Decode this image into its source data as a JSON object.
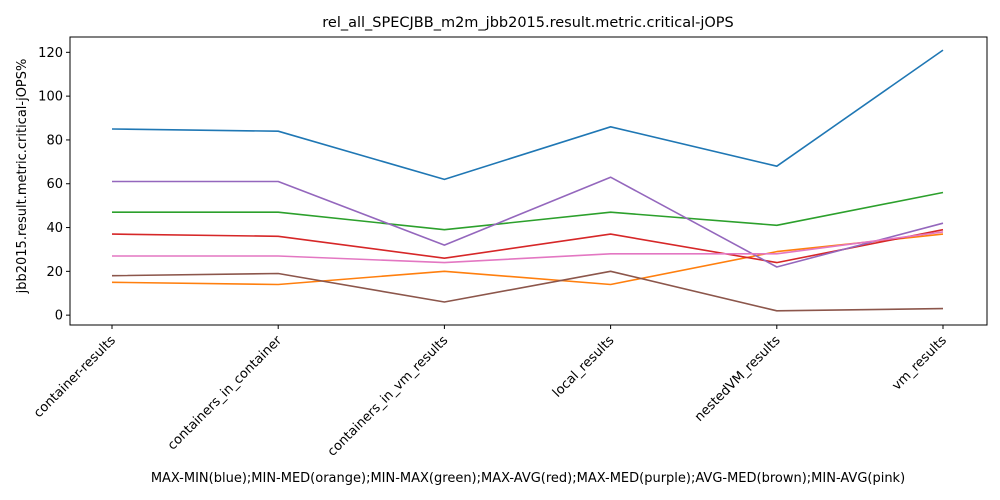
{
  "chart_data": {
    "type": "line",
    "title": "rel_all_SPECJBB_m2m_jbb2015.result.metric.critical-jOPS",
    "xlabel": "MAX-MIN(blue);MIN-MED(orange);MIN-MAX(green);MAX-AVG(red);MAX-MED(purple);AVG-MED(brown);MIN-AVG(pink)",
    "ylabel": "jbb2015.result.metric.critical-jOPS%",
    "categories": [
      "container-results",
      "containers_in_container",
      "containers_in_vm_results",
      "local_results",
      "nestedVM_results",
      "vm_results"
    ],
    "ylim": [
      -4.5,
      127
    ],
    "yticks": [
      0,
      20,
      40,
      60,
      80,
      100,
      120
    ],
    "grid": false,
    "series": [
      {
        "color": "#1f77b4",
        "values": [
          85,
          84,
          62,
          86,
          68,
          121
        ]
      },
      {
        "color": "#ff7f0e",
        "values": [
          15,
          14,
          20,
          14,
          29,
          37
        ]
      },
      {
        "color": "#2ca02c",
        "values": [
          47,
          47,
          39,
          47,
          41,
          56
        ]
      },
      {
        "color": "#d62728",
        "values": [
          37,
          36,
          26,
          37,
          24,
          39
        ]
      },
      {
        "color": "#9467bd",
        "values": [
          61,
          61,
          32,
          63,
          22,
          42
        ]
      },
      {
        "color": "#8c564b",
        "values": [
          18,
          19,
          6,
          20,
          2,
          3
        ]
      },
      {
        "color": "#e377c2",
        "values": [
          27,
          27,
          24,
          28,
          28,
          38
        ]
      }
    ]
  }
}
